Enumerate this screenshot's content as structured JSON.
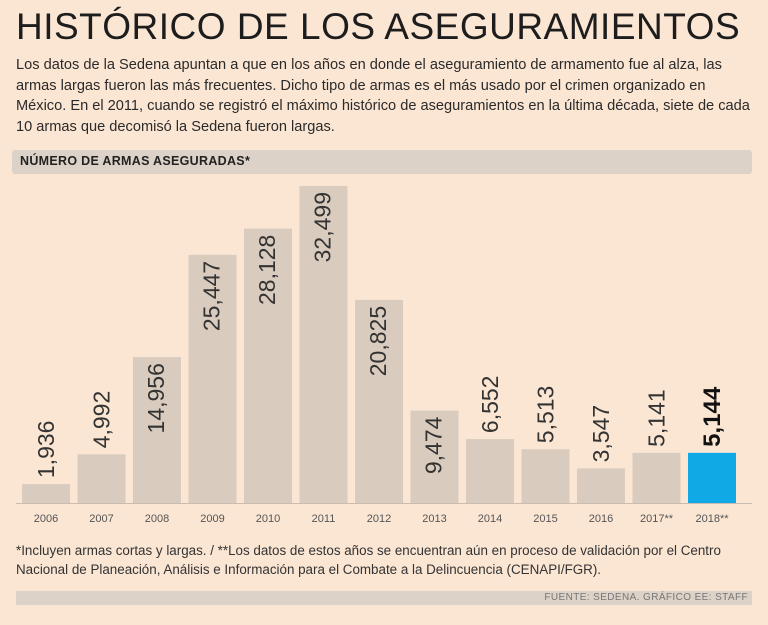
{
  "header": {
    "title": "HISTÓRICO DE LOS ASEGURAMIENTOS",
    "intro": "Los datos de la Sedena apuntan a que en los años en donde el aseguramiento de armamento fue al alza, las armas largas fueron las más frecuentes. Dicho tipo de armas es el más usado por el crimen organizado en México. En el 2011, cuando se registró el máximo histórico de aseguramientos en la última década, siete de cada 10 armas que decomisó la Sedena fueron largas."
  },
  "section": {
    "label": "NÚMERO DE ARMAS ASEGURADAS*"
  },
  "chart_data": {
    "type": "bar",
    "title": "NÚMERO DE ARMAS ASEGURADAS*",
    "categories": [
      "2006",
      "2007",
      "2008",
      "2009",
      "2010",
      "2011",
      "2012",
      "2013",
      "2014",
      "2015",
      "2016",
      "2017**",
      "2018**"
    ],
    "values": [
      1936,
      4992,
      14956,
      25447,
      28128,
      32499,
      20825,
      9474,
      6552,
      5513,
      3547,
      5141,
      5144
    ],
    "value_labels": [
      "1,936",
      "4,992",
      "14,956",
      "25,447",
      "28,128",
      "32,499",
      "20,825",
      "9,474",
      "6,552",
      "5,513",
      "3,547",
      "5,141",
      "5,144"
    ],
    "highlight_index": 12,
    "colors": {
      "bar": "#d9cbbd",
      "highlight": "#11a8e6",
      "label": "#333333",
      "axis": "#c9bcb0"
    },
    "xlabel": "",
    "ylabel": "",
    "ylim": [
      0,
      32499
    ]
  },
  "footer": {
    "footnote": "*Incluyen armas cortas y largas. / **Los datos de estos años se encuentran aún en proceso de validación por el Centro Nacional de Planeación, Análisis e Información para el Combate a la Delincuencia (CENAPI/FGR).",
    "source": "FUENTE: SEDENA. GRÁFICO EE: STAFF"
  }
}
